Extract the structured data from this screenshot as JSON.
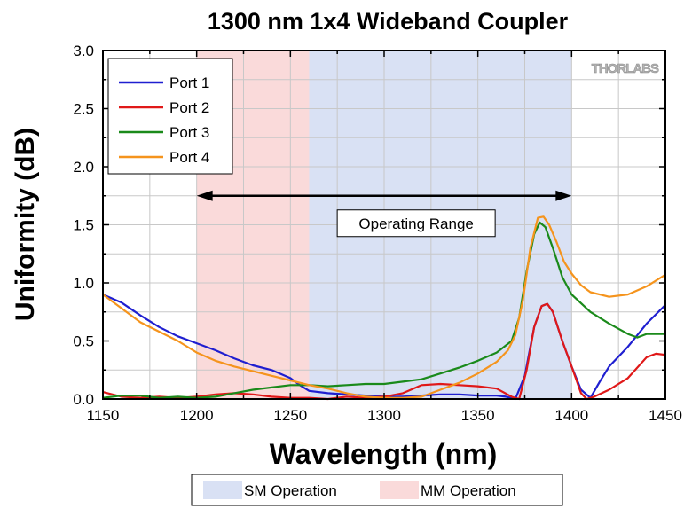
{
  "chart_data": {
    "type": "line",
    "title": "1300 nm 1x4 Wideband Coupler",
    "xlabel": "Wavelength (nm)",
    "ylabel": "Uniformity (dB)",
    "xlim": [
      1150,
      1450
    ],
    "ylim": [
      0.0,
      3.0
    ],
    "x_ticks": [
      "1150",
      "1200",
      "1250",
      "1300",
      "1350",
      "1400",
      "1450"
    ],
    "y_ticks": [
      "0.0",
      "0.5",
      "1.0",
      "1.5",
      "2.0",
      "2.5",
      "3.0"
    ],
    "grid": true,
    "legend_position": "top-left",
    "brand_logo": "THORLABS",
    "annotation": {
      "text": "Operating Range",
      "arrow_from": 1200,
      "arrow_to": 1400,
      "y": 1.75
    },
    "regions": [
      {
        "name": "MM Operation",
        "from": 1200,
        "to": 1260,
        "color": "#fadada"
      },
      {
        "name": "SM Operation",
        "from": 1260,
        "to": 1400,
        "color": "#d9e1f4"
      }
    ],
    "region_legend": [
      "SM Operation",
      "MM Operation"
    ],
    "series": [
      {
        "name": "Port 1",
        "color": "#1f1fd0",
        "points": [
          [
            1150,
            0.9
          ],
          [
            1160,
            0.83
          ],
          [
            1170,
            0.72
          ],
          [
            1180,
            0.62
          ],
          [
            1190,
            0.54
          ],
          [
            1200,
            0.48
          ],
          [
            1210,
            0.42
          ],
          [
            1220,
            0.35
          ],
          [
            1230,
            0.29
          ],
          [
            1240,
            0.25
          ],
          [
            1250,
            0.18
          ],
          [
            1255,
            0.12
          ],
          [
            1260,
            0.07
          ],
          [
            1270,
            0.05
          ],
          [
            1280,
            0.04
          ],
          [
            1290,
            0.03
          ],
          [
            1300,
            0.02
          ],
          [
            1310,
            0.02
          ],
          [
            1320,
            0.03
          ],
          [
            1330,
            0.04
          ],
          [
            1340,
            0.04
          ],
          [
            1350,
            0.03
          ],
          [
            1360,
            0.03
          ],
          [
            1365,
            0.02
          ],
          [
            1370,
            0.0
          ],
          [
            1375,
            0.2
          ],
          [
            1380,
            0.62
          ],
          [
            1384,
            0.8
          ],
          [
            1387,
            0.82
          ],
          [
            1390,
            0.75
          ],
          [
            1395,
            0.5
          ],
          [
            1400,
            0.28
          ],
          [
            1405,
            0.08
          ],
          [
            1410,
            0.01
          ],
          [
            1415,
            0.15
          ],
          [
            1420,
            0.28
          ],
          [
            1430,
            0.45
          ],
          [
            1440,
            0.65
          ],
          [
            1450,
            0.81
          ]
        ]
      },
      {
        "name": "Port 2",
        "color": "#e01818",
        "points": [
          [
            1150,
            0.06
          ],
          [
            1160,
            0.02
          ],
          [
            1170,
            0.01
          ],
          [
            1180,
            0.02
          ],
          [
            1190,
            0.01
          ],
          [
            1200,
            0.02
          ],
          [
            1210,
            0.04
          ],
          [
            1220,
            0.05
          ],
          [
            1230,
            0.04
          ],
          [
            1240,
            0.02
          ],
          [
            1250,
            0.01
          ],
          [
            1260,
            0.01
          ],
          [
            1270,
            0.0
          ],
          [
            1280,
            0.02
          ],
          [
            1290,
            0.01
          ],
          [
            1300,
            0.02
          ],
          [
            1310,
            0.05
          ],
          [
            1320,
            0.12
          ],
          [
            1330,
            0.13
          ],
          [
            1340,
            0.12
          ],
          [
            1350,
            0.11
          ],
          [
            1360,
            0.09
          ],
          [
            1368,
            0.02
          ],
          [
            1372,
            0.0
          ],
          [
            1376,
            0.25
          ],
          [
            1380,
            0.62
          ],
          [
            1384,
            0.8
          ],
          [
            1387,
            0.82
          ],
          [
            1390,
            0.75
          ],
          [
            1395,
            0.5
          ],
          [
            1400,
            0.28
          ],
          [
            1405,
            0.05
          ],
          [
            1408,
            0.0
          ],
          [
            1412,
            0.02
          ],
          [
            1420,
            0.08
          ],
          [
            1430,
            0.18
          ],
          [
            1440,
            0.36
          ],
          [
            1445,
            0.39
          ],
          [
            1450,
            0.38
          ]
        ]
      },
      {
        "name": "Port 3",
        "color": "#1a8a1a",
        "points": [
          [
            1150,
            0.01
          ],
          [
            1160,
            0.03
          ],
          [
            1170,
            0.03
          ],
          [
            1180,
            0.01
          ],
          [
            1190,
            0.02
          ],
          [
            1200,
            0.01
          ],
          [
            1210,
            0.02
          ],
          [
            1220,
            0.05
          ],
          [
            1230,
            0.08
          ],
          [
            1240,
            0.1
          ],
          [
            1250,
            0.12
          ],
          [
            1260,
            0.12
          ],
          [
            1270,
            0.11
          ],
          [
            1280,
            0.12
          ],
          [
            1290,
            0.13
          ],
          [
            1300,
            0.13
          ],
          [
            1310,
            0.15
          ],
          [
            1320,
            0.17
          ],
          [
            1330,
            0.22
          ],
          [
            1340,
            0.27
          ],
          [
            1350,
            0.33
          ],
          [
            1360,
            0.4
          ],
          [
            1368,
            0.5
          ],
          [
            1372,
            0.7
          ],
          [
            1376,
            1.1
          ],
          [
            1380,
            1.42
          ],
          [
            1383,
            1.52
          ],
          [
            1386,
            1.48
          ],
          [
            1390,
            1.3
          ],
          [
            1395,
            1.05
          ],
          [
            1400,
            0.9
          ],
          [
            1410,
            0.75
          ],
          [
            1420,
            0.65
          ],
          [
            1430,
            0.56
          ],
          [
            1435,
            0.53
          ],
          [
            1440,
            0.56
          ],
          [
            1450,
            0.56
          ]
        ]
      },
      {
        "name": "Port 4",
        "color": "#f5941d",
        "points": [
          [
            1150,
            0.9
          ],
          [
            1160,
            0.78
          ],
          [
            1170,
            0.66
          ],
          [
            1180,
            0.58
          ],
          [
            1190,
            0.5
          ],
          [
            1200,
            0.4
          ],
          [
            1210,
            0.33
          ],
          [
            1220,
            0.28
          ],
          [
            1230,
            0.24
          ],
          [
            1240,
            0.2
          ],
          [
            1250,
            0.16
          ],
          [
            1260,
            0.12
          ],
          [
            1270,
            0.09
          ],
          [
            1280,
            0.05
          ],
          [
            1290,
            0.02
          ],
          [
            1300,
            0.01
          ],
          [
            1310,
            0.01
          ],
          [
            1320,
            0.02
          ],
          [
            1330,
            0.08
          ],
          [
            1340,
            0.14
          ],
          [
            1350,
            0.22
          ],
          [
            1360,
            0.32
          ],
          [
            1366,
            0.42
          ],
          [
            1370,
            0.55
          ],
          [
            1374,
            0.85
          ],
          [
            1378,
            1.3
          ],
          [
            1382,
            1.56
          ],
          [
            1385,
            1.57
          ],
          [
            1388,
            1.5
          ],
          [
            1392,
            1.35
          ],
          [
            1396,
            1.18
          ],
          [
            1400,
            1.08
          ],
          [
            1405,
            0.98
          ],
          [
            1410,
            0.92
          ],
          [
            1420,
            0.88
          ],
          [
            1430,
            0.9
          ],
          [
            1440,
            0.97
          ],
          [
            1450,
            1.07
          ]
        ]
      }
    ]
  }
}
